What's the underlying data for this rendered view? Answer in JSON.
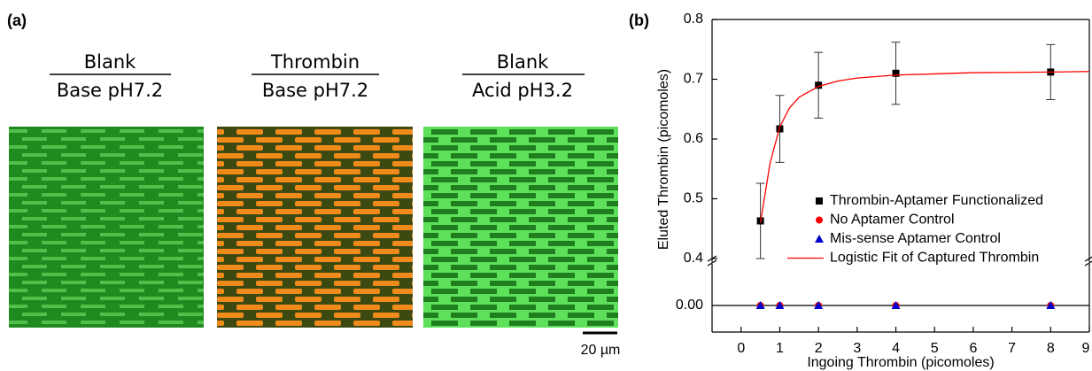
{
  "panel_a": {
    "label": "(a)",
    "images": [
      {
        "top": "Blank",
        "bottom": "Base pH7.2"
      },
      {
        "top": "Thrombin",
        "bottom": "Base pH7.2"
      },
      {
        "top": "Blank",
        "bottom": "Acid pH3.2"
      }
    ],
    "scale_bar": "20 µm"
  },
  "chart_data": {
    "type": "scatter",
    "panel_label": "(b)",
    "xlabel": "Ingoing Thrombin (picomoles)",
    "ylabel": "Eluted Thrombin (picomoles)",
    "x": [
      0.5,
      1,
      2,
      4,
      8
    ],
    "xlim": [
      -0.75,
      9
    ],
    "xticks": [
      0,
      1,
      2,
      3,
      4,
      5,
      6,
      7,
      8,
      9
    ],
    "ylim": [
      0.4,
      0.8
    ],
    "yticks": [
      0.4,
      0.5,
      0.6,
      0.7,
      0.8
    ],
    "ylim_lower": [
      -0.03,
      0.045
    ],
    "yticks_lower": [
      {
        "value": 0,
        "label": "0.00"
      }
    ],
    "series": [
      {
        "name": "Thrombin-Aptamer Functionalized",
        "color": "#000000",
        "marker": "square",
        "values": [
          0.463,
          0.617,
          0.69,
          0.71,
          0.712
        ],
        "errors": [
          0.063,
          0.056,
          0.055,
          0.052,
          0.046
        ]
      },
      {
        "name": "No Aptamer Control",
        "color": "#ff0000",
        "marker": "circle",
        "values": [
          0,
          0,
          0,
          0,
          0
        ]
      },
      {
        "name": "Mis-sense Aptamer Control",
        "color": "#0000cc",
        "marker": "triangle",
        "values": [
          0,
          0,
          0,
          0,
          0
        ]
      },
      {
        "name": "Logistic Fit of Captured Thrombin",
        "color": "#ff0000",
        "type": "line",
        "x": [
          0.5,
          0.75,
          1,
          1.25,
          1.5,
          2,
          2.5,
          3,
          4,
          5,
          6,
          8,
          9
        ],
        "values": [
          0.46,
          0.56,
          0.62,
          0.652,
          0.67,
          0.688,
          0.697,
          0.702,
          0.707,
          0.709,
          0.711,
          0.712,
          0.713
        ]
      }
    ]
  }
}
